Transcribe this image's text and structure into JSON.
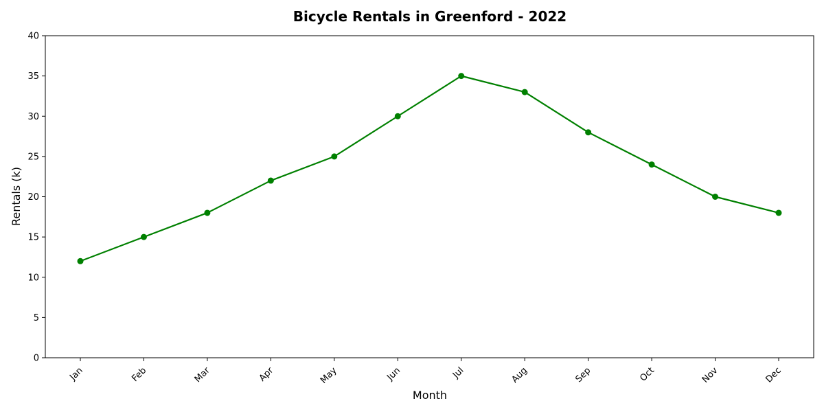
{
  "chart_data": {
    "type": "line",
    "title": "Bicycle Rentals in Greenford - 2022",
    "xlabel": "Month",
    "ylabel": "Rentals (k)",
    "categories": [
      "Jan",
      "Feb",
      "Mar",
      "Apr",
      "May",
      "Jun",
      "Jul",
      "Aug",
      "Sep",
      "Oct",
      "Nov",
      "Dec"
    ],
    "series": [
      {
        "values": [
          12,
          15,
          18,
          22,
          25,
          30,
          35,
          33,
          28,
          24,
          20,
          18
        ],
        "color": "#008000",
        "marker": "circle"
      }
    ],
    "ylim": [
      0,
      40
    ],
    "yticks": [
      0,
      5,
      10,
      15,
      20,
      25,
      30,
      35,
      40
    ],
    "grid": false,
    "legend": "none"
  }
}
